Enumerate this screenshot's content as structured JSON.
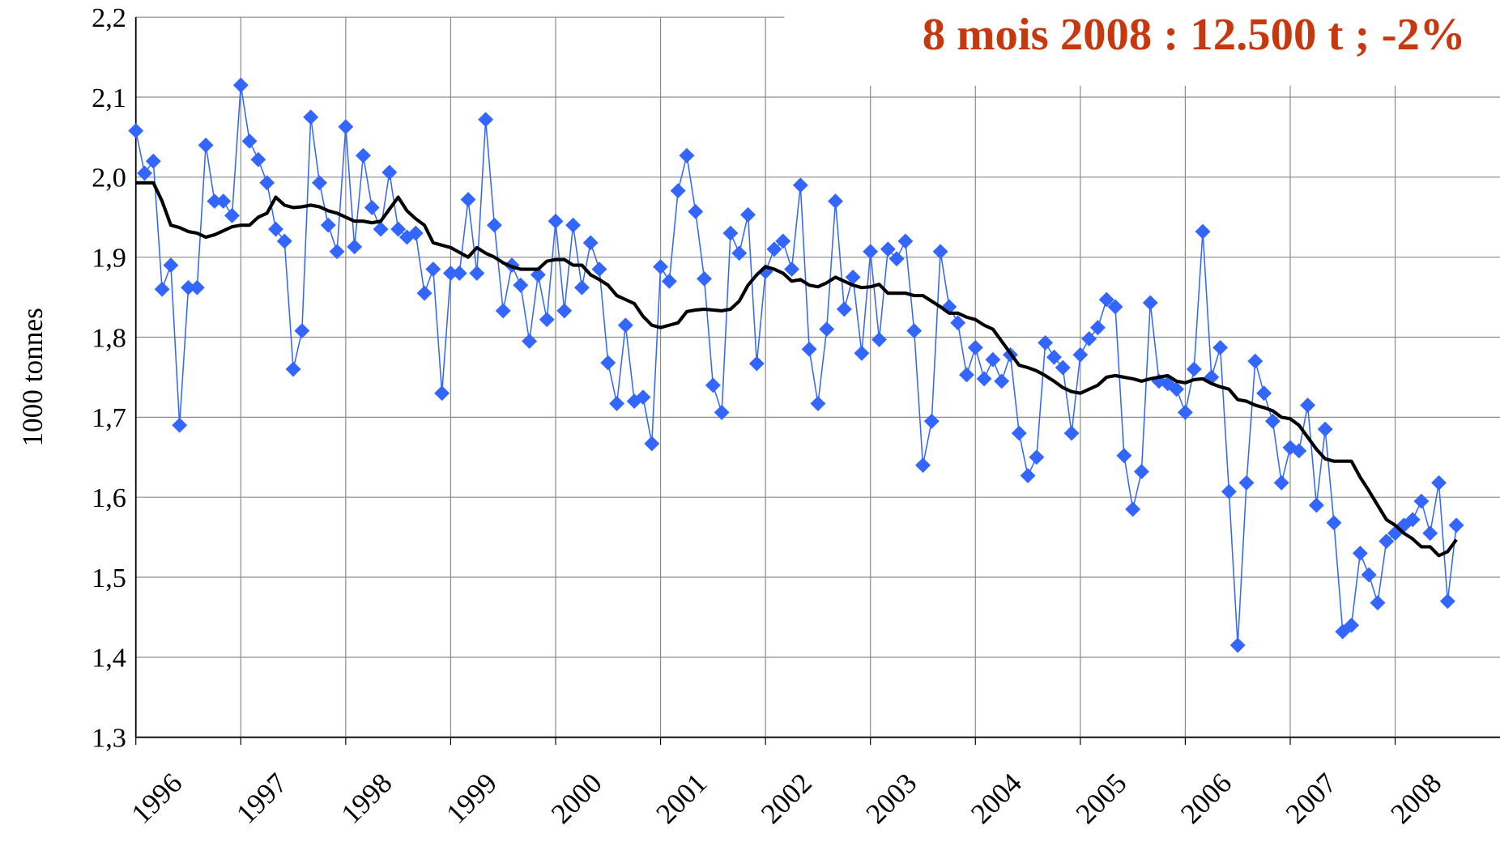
{
  "chart_data": {
    "type": "line",
    "annotation": "8 mois 2008 :  12.500 t ; -2%",
    "y_label": "1000 tonnes",
    "categories": [
      "1996",
      null,
      null,
      null,
      null,
      null,
      null,
      null,
      null,
      null,
      null,
      null,
      "1997",
      null,
      null,
      null,
      null,
      null,
      null,
      null,
      null,
      null,
      null,
      null,
      "1998",
      null,
      null,
      null,
      null,
      null,
      null,
      null,
      null,
      null,
      null,
      null,
      "1999",
      null,
      null,
      null,
      null,
      null,
      null,
      null,
      null,
      null,
      null,
      null,
      "2000",
      null,
      null,
      null,
      null,
      null,
      null,
      null,
      null,
      null,
      null,
      null,
      "2001",
      null,
      null,
      null,
      null,
      null,
      null,
      null,
      null,
      null,
      null,
      null,
      "2002",
      null,
      null,
      null,
      null,
      null,
      null,
      null,
      null,
      null,
      null,
      null,
      "2003",
      null,
      null,
      null,
      null,
      null,
      null,
      null,
      null,
      null,
      null,
      null,
      "2004",
      null,
      null,
      null,
      null,
      null,
      null,
      null,
      null,
      null,
      null,
      null,
      "2005",
      null,
      null,
      null,
      null,
      null,
      null,
      null,
      null,
      null,
      null,
      null,
      "2006",
      null,
      null,
      null,
      null,
      null,
      null,
      null,
      null,
      null,
      null,
      null,
      "2007",
      null,
      null,
      null,
      null,
      null,
      null,
      null,
      null,
      null,
      null,
      null,
      "2008",
      null,
      null,
      null,
      null,
      null,
      null,
      null
    ],
    "series": [
      {
        "color": "#3366ff",
        "marker": "diamond",
        "values": [
          2.058,
          2.005,
          2.02,
          1.86,
          1.89,
          1.69,
          1.862,
          1.862,
          2.04,
          1.97,
          1.97,
          1.952,
          2.115,
          2.045,
          2.022,
          1.993,
          1.935,
          1.92,
          1.76,
          1.808,
          2.075,
          1.993,
          1.94,
          1.907,
          2.063,
          1.913,
          2.027,
          1.962,
          1.935,
          2.006,
          1.935,
          1.925,
          1.93,
          1.855,
          1.885,
          1.73,
          1.88,
          1.88,
          1.972,
          1.88,
          2.072,
          1.94,
          1.833,
          1.89,
          1.865,
          1.795,
          1.878,
          1.822,
          1.945,
          1.833,
          1.94,
          1.862,
          1.918,
          1.885,
          1.768,
          1.717,
          1.815,
          1.72,
          1.725,
          1.667,
          1.888,
          1.87,
          1.983,
          2.027,
          1.957,
          1.873,
          1.74,
          1.706,
          1.93,
          1.905,
          1.953,
          1.767,
          1.882,
          1.91,
          1.92,
          1.885,
          1.99,
          1.785,
          1.717,
          1.81,
          1.97,
          1.835,
          1.875,
          1.78,
          1.907,
          1.797,
          1.91,
          1.898,
          1.92,
          1.808,
          1.64,
          1.695,
          1.907,
          1.838,
          1.818,
          1.753,
          1.787,
          1.748,
          1.772,
          1.745,
          1.778,
          1.68,
          1.627,
          1.65,
          1.793,
          1.775,
          1.762,
          1.68,
          1.778,
          1.798,
          1.812,
          1.847,
          1.838,
          1.652,
          1.585,
          1.632,
          1.843,
          1.745,
          1.742,
          1.735,
          1.706,
          1.76,
          1.932,
          1.75,
          1.787,
          1.607,
          1.415,
          1.618,
          1.77,
          1.73,
          1.695,
          1.618,
          1.662,
          1.658,
          1.715,
          1.59,
          1.685,
          1.568,
          1.432,
          1.44,
          1.53,
          1.503,
          1.468,
          1.545,
          1.555,
          1.565,
          1.572,
          1.595,
          1.555,
          1.618,
          1.47,
          1.565
        ]
      },
      {
        "color": "#000000",
        "values": [
          1.993,
          1.993,
          1.993,
          1.97,
          1.94,
          1.937,
          1.932,
          1.93,
          1.925,
          1.928,
          1.933,
          1.938,
          1.94,
          1.94,
          1.95,
          1.955,
          1.975,
          1.965,
          1.962,
          1.963,
          1.965,
          1.963,
          1.958,
          1.955,
          1.95,
          1.945,
          1.945,
          1.943,
          1.945,
          1.96,
          1.975,
          1.958,
          1.948,
          1.94,
          1.918,
          1.915,
          1.912,
          1.906,
          1.9,
          1.912,
          1.905,
          1.9,
          1.893,
          1.888,
          1.885,
          1.885,
          1.885,
          1.895,
          1.897,
          1.897,
          1.89,
          1.89,
          1.878,
          1.872,
          1.865,
          1.852,
          1.847,
          1.842,
          1.826,
          1.815,
          1.812,
          1.815,
          1.818,
          1.832,
          1.834,
          1.835,
          1.834,
          1.833,
          1.835,
          1.845,
          1.865,
          1.878,
          1.888,
          1.885,
          1.88,
          1.87,
          1.872,
          1.865,
          1.863,
          1.868,
          1.875,
          1.87,
          1.865,
          1.862,
          1.863,
          1.866,
          1.855,
          1.855,
          1.855,
          1.852,
          1.852,
          1.845,
          1.838,
          1.83,
          1.83,
          1.825,
          1.822,
          1.815,
          1.81,
          1.795,
          1.78,
          1.765,
          1.762,
          1.758,
          1.752,
          1.745,
          1.737,
          1.732,
          1.73,
          1.735,
          1.74,
          1.75,
          1.752,
          1.75,
          1.748,
          1.745,
          1.748,
          1.75,
          1.752,
          1.745,
          1.743,
          1.747,
          1.748,
          1.742,
          1.738,
          1.735,
          1.722,
          1.72,
          1.715,
          1.712,
          1.708,
          1.7,
          1.698,
          1.69,
          1.675,
          1.66,
          1.648,
          1.645,
          1.645,
          1.645,
          1.625,
          1.608,
          1.59,
          1.572,
          1.565,
          1.555,
          1.548,
          1.538,
          1.538,
          1.527,
          1.532,
          1.547
        ]
      }
    ],
    "ylim": [
      1.3,
      2.2
    ],
    "yticks": [
      {
        "value": 1.3,
        "label": "1,3"
      },
      {
        "value": 1.4,
        "label": "1,4"
      },
      {
        "value": 1.5,
        "label": "1,5"
      },
      {
        "value": 1.6,
        "label": "1,6"
      },
      {
        "value": 1.7,
        "label": "1,7"
      },
      {
        "value": 1.8,
        "label": "1,8"
      },
      {
        "value": 1.9,
        "label": "1,9"
      },
      {
        "value": 2.0,
        "label": "2,0"
      },
      {
        "value": 2.1,
        "label": "2,1"
      },
      {
        "value": 2.2,
        "label": "2,2"
      }
    ],
    "grid": true
  }
}
